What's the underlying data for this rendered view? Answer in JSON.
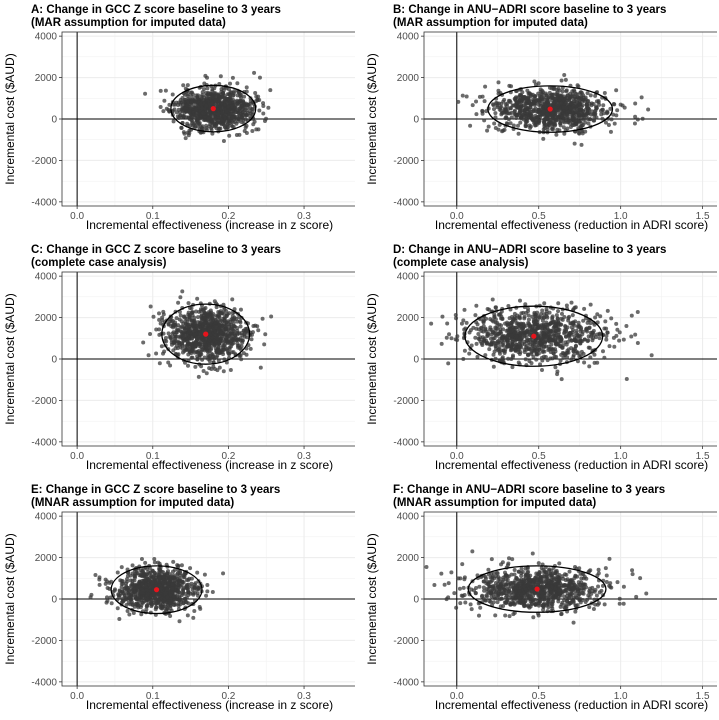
{
  "figure": {
    "colors": {
      "point": "#3a3a3a",
      "mean_point": "#e8141c",
      "grid": "#ebebeb",
      "panel_border": "#333333",
      "reference_line": "#000000",
      "ellipse": "#000000"
    }
  },
  "chart_data": [
    {
      "id": "A",
      "type": "scatter",
      "title_line1": "A: Change in GCC Z score baseline to 3 years",
      "title_line2": "(MAR assumption for imputed data)",
      "xlabel": "Incremental effectiveness (increase in z score)",
      "ylabel": "Incremental cost ($AUD)",
      "xlim": [
        -0.02,
        0.37
      ],
      "ylim": [
        -4200,
        4200
      ],
      "xticks": [
        0.0,
        0.1,
        0.2,
        0.3
      ],
      "xtick_labels": [
        "0.0",
        "0.1",
        "0.2",
        "0.3"
      ],
      "yticks": [
        -4000,
        -2000,
        0,
        2000,
        4000
      ],
      "ytick_labels": [
        "-4000",
        "-2000",
        "0",
        "2000",
        "4000"
      ],
      "mean": {
        "x": 0.18,
        "y": 500
      },
      "spread": {
        "sx": 0.026,
        "sy": 500
      },
      "ellipse": {
        "cx": 0.18,
        "cy": 500,
        "rx": 0.056,
        "ry": 1120
      },
      "n_points": 900,
      "seed": 11
    },
    {
      "id": "B",
      "type": "scatter",
      "title_line1": "B: Change in ANU−ADRI score baseline to 3 years",
      "title_line2": "(MAR assumption for imputed data)",
      "xlabel": "Incremental effectiveness (reduction in ADRI score)",
      "ylabel": "Incremental cost ($AUD)",
      "xlim": [
        -0.2,
        1.6
      ],
      "ylim": [
        -4200,
        4200
      ],
      "xticks": [
        0.0,
        0.5,
        1.0,
        1.5
      ],
      "xtick_labels": [
        "0.0",
        "0.5",
        "1.0",
        "1.5"
      ],
      "yticks": [
        -4000,
        -2000,
        0,
        2000,
        4000
      ],
      "ytick_labels": [
        "-4000",
        "-2000",
        "0",
        "2000",
        "4000"
      ],
      "mean": {
        "x": 0.57,
        "y": 480
      },
      "spread": {
        "sx": 0.18,
        "sy": 500
      },
      "ellipse": {
        "cx": 0.57,
        "cy": 480,
        "rx": 0.38,
        "ry": 1120
      },
      "n_points": 900,
      "seed": 22
    },
    {
      "id": "C",
      "type": "scatter",
      "title_line1": "C: Change in GCC Z score baseline to 3 years",
      "title_line2": "(complete case analysis)",
      "xlabel": "Incremental effectiveness (increase in z score)",
      "ylabel": "Incremental cost ($AUD)",
      "xlim": [
        -0.02,
        0.37
      ],
      "ylim": [
        -4200,
        4200
      ],
      "xticks": [
        0.0,
        0.1,
        0.2,
        0.3
      ],
      "xtick_labels": [
        "0.0",
        "0.1",
        "0.2",
        "0.3"
      ],
      "yticks": [
        -4000,
        -2000,
        0,
        2000,
        4000
      ],
      "ytick_labels": [
        "-4000",
        "-2000",
        "0",
        "2000",
        "4000"
      ],
      "mean": {
        "x": 0.17,
        "y": 1200
      },
      "spread": {
        "sx": 0.027,
        "sy": 650
      },
      "ellipse": {
        "cx": 0.17,
        "cy": 1200,
        "rx": 0.058,
        "ry": 1450
      },
      "n_points": 900,
      "seed": 33
    },
    {
      "id": "D",
      "type": "scatter",
      "title_line1": "D: Change in ANU−ADRI score baseline to 3 years",
      "title_line2": "(complete case analysis)",
      "xlabel": "Incremental effectiveness (reduction in ADRI score)",
      "ylabel": "Incremental cost ($AUD)",
      "xlim": [
        -0.2,
        1.6
      ],
      "ylim": [
        -4200,
        4200
      ],
      "xticks": [
        0.0,
        0.5,
        1.0,
        1.5
      ],
      "xtick_labels": [
        "0.0",
        "0.5",
        "1.0",
        "1.5"
      ],
      "yticks": [
        -4000,
        -2000,
        0,
        2000,
        4000
      ],
      "ytick_labels": [
        "-4000",
        "-2000",
        "0",
        "2000",
        "4000"
      ],
      "mean": {
        "x": 0.47,
        "y": 1100
      },
      "spread": {
        "sx": 0.22,
        "sy": 650
      },
      "ellipse": {
        "cx": 0.47,
        "cy": 1100,
        "rx": 0.42,
        "ry": 1450
      },
      "n_points": 900,
      "seed": 44
    },
    {
      "id": "E",
      "type": "scatter",
      "title_line1": "E: Change in GCC Z score baseline to 3 years",
      "title_line2": "(MNAR assumption for imputed data)",
      "xlabel": "Incremental effectiveness (increase in z score)",
      "ylabel": "Incremental cost ($AUD)",
      "xlim": [
        -0.02,
        0.37
      ],
      "ylim": [
        -4200,
        4200
      ],
      "xticks": [
        0.0,
        0.1,
        0.2,
        0.3
      ],
      "xtick_labels": [
        "0.0",
        "0.1",
        "0.2",
        "0.3"
      ],
      "yticks": [
        -4000,
        -2000,
        0,
        2000,
        4000
      ],
      "ytick_labels": [
        "-4000",
        "-2000",
        "0",
        "2000",
        "4000"
      ],
      "mean": {
        "x": 0.105,
        "y": 450
      },
      "spread": {
        "sx": 0.027,
        "sy": 500
      },
      "ellipse": {
        "cx": 0.105,
        "cy": 450,
        "rx": 0.06,
        "ry": 1150
      },
      "n_points": 900,
      "seed": 55
    },
    {
      "id": "F",
      "type": "scatter",
      "title_line1": "F: Change in ANU−ADRI score baseline to 3 years",
      "title_line2": "(MNAR assumption for imputed data)",
      "xlabel": "Incremental effectiveness (reduction in ADRI score)",
      "ylabel": "Incremental cost ($AUD)",
      "xlim": [
        -0.2,
        1.6
      ],
      "ylim": [
        -4200,
        4200
      ],
      "xticks": [
        0.0,
        0.5,
        1.0,
        1.5
      ],
      "xtick_labels": [
        "0.0",
        "0.5",
        "1.0",
        "1.5"
      ],
      "yticks": [
        -4000,
        -2000,
        0,
        2000,
        4000
      ],
      "ytick_labels": [
        "-4000",
        "-2000",
        "0",
        "2000",
        "4000"
      ],
      "mean": {
        "x": 0.49,
        "y": 480
      },
      "spread": {
        "sx": 0.2,
        "sy": 500
      },
      "ellipse": {
        "cx": 0.49,
        "cy": 480,
        "rx": 0.42,
        "ry": 1120
      },
      "n_points": 900,
      "seed": 66
    }
  ]
}
